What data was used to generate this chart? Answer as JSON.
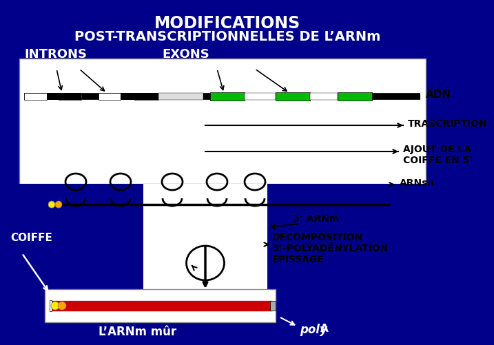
{
  "bg_color": "#00008B",
  "title_line1": "MODIFICATIONS",
  "title_line2": "POST-TRANSCRIPTIONNELLES DE L’ARNm",
  "label_introns": "INTRONS",
  "label_exons": "EXONS",
  "label_adn": "ADN",
  "label_transcription": "TRASCRIPTION",
  "label_ajout": "AJOUT DE LA\nCOIFFE EN 5’",
  "label_arnsn": "ARNsn",
  "label_3arnm": "3’ ARNm",
  "label_decomposition": "DÉCOMPOSITION\n3’-POLYADÉNYLATION\nÉPISSAGE",
  "label_coiffe": "COIFFE",
  "label_arnm_mur": "L’ARNm mûr",
  "label_polya": "poly",
  "label_polya_A": "A",
  "white": "#FFFFFF",
  "black": "#000000",
  "green": "#00BB00",
  "red": "#CC0000",
  "yellow": "#FFEE00",
  "orange": "#FFA500",
  "dark_blue": "#00008B"
}
